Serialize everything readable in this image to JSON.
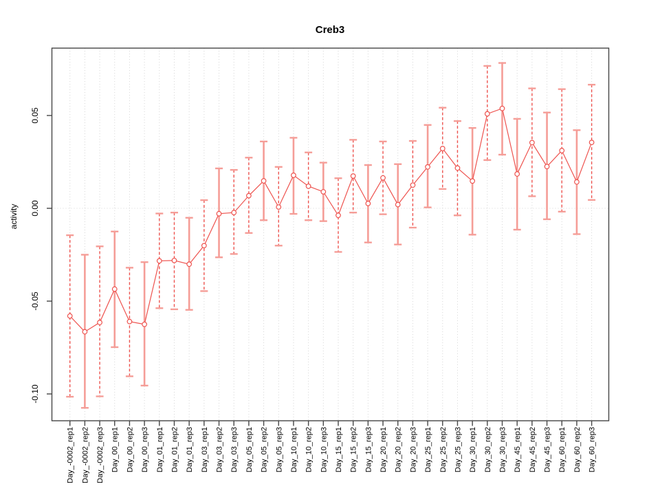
{
  "chart_data": {
    "type": "scatter",
    "title": "Creb3",
    "ylabel": "activity",
    "xlabel": "",
    "legend": "none",
    "categories": [
      "Day_-0002_rep1",
      "Day_-0002_rep2",
      "Day_-0002_rep3",
      "Day_00_rep1",
      "Day_00_rep2",
      "Day_00_rep3",
      "Day_01_rep1",
      "Day_01_rep2",
      "Day_01_rep3",
      "Day_03_rep1",
      "Day_03_rep2",
      "Day_03_rep3",
      "Day_05_rep1",
      "Day_05_rep2",
      "Day_05_rep3",
      "Day_10_rep1",
      "Day_10_rep2",
      "Day_10_rep3",
      "Day_15_rep1",
      "Day_15_rep2",
      "Day_15_rep3",
      "Day_20_rep1",
      "Day_20_rep2",
      "Day_20_rep3",
      "Day_25_rep1",
      "Day_25_rep2",
      "Day_25_rep3",
      "Day_30_rep1",
      "Day_30_rep2",
      "Day_30_rep3",
      "Day_45_rep1",
      "Day_45_rep2",
      "Day_45_rep3",
      "Day_60_rep1",
      "Day_60_rep2",
      "Day_60_rep3"
    ],
    "series": [
      {
        "name": "activity",
        "values": [
          -0.058,
          -0.0665,
          -0.0615,
          -0.0435,
          -0.061,
          -0.0625,
          -0.0283,
          -0.0281,
          -0.0301,
          -0.0201,
          -0.0029,
          -0.0023,
          0.0068,
          0.0148,
          0.0007,
          0.0178,
          0.0119,
          0.0089,
          -0.0038,
          0.0174,
          0.0026,
          0.0164,
          0.002,
          0.0125,
          0.0223,
          0.0322,
          0.0217,
          0.0147,
          0.0509,
          0.0538,
          0.0185,
          0.0354,
          0.0225,
          0.0311,
          0.0142,
          0.0355
        ],
        "error_low": [
          -0.1015,
          -0.1075,
          -0.1013,
          -0.0748,
          -0.0905,
          -0.0955,
          -0.0538,
          -0.0544,
          -0.0547,
          -0.0446,
          -0.0264,
          -0.0246,
          -0.0133,
          -0.0064,
          -0.0201,
          -0.003,
          -0.0064,
          -0.0069,
          -0.0235,
          -0.0023,
          -0.0184,
          -0.0032,
          -0.0195,
          -0.0104,
          0.0005,
          0.0104,
          -0.0038,
          -0.0142,
          0.026,
          0.0289,
          -0.0115,
          0.0065,
          -0.0059,
          -0.0018,
          -0.0139,
          0.0045
        ],
        "error_high": [
          -0.0145,
          -0.025,
          -0.0205,
          -0.0125,
          -0.032,
          -0.029,
          -0.0028,
          -0.0023,
          -0.0051,
          0.0044,
          0.0215,
          0.0207,
          0.0273,
          0.036,
          0.0223,
          0.038,
          0.0301,
          0.0246,
          0.0162,
          0.0369,
          0.0233,
          0.036,
          0.0238,
          0.0363,
          0.0449,
          0.0542,
          0.047,
          0.0433,
          0.0767,
          0.0783,
          0.0482,
          0.0646,
          0.0516,
          0.0642,
          0.0421,
          0.0666
        ],
        "bar_styles": [
          "dashed",
          "solid",
          "dashed",
          "solid",
          "dashed",
          "solid",
          "dashed",
          "dashed",
          "solid",
          "dashed",
          "solid",
          "dashed",
          "dashed",
          "solid",
          "dashed",
          "solid",
          "dashed",
          "solid",
          "dashed",
          "dashed",
          "solid",
          "dashed",
          "solid",
          "dashed",
          "solid",
          "dashed",
          "dashed",
          "solid",
          "dashed",
          "solid",
          "solid",
          "dashed",
          "solid",
          "dashed",
          "solid",
          "dashed"
        ]
      }
    ],
    "yticks": {
      "values": [
        0.05,
        0.0,
        -0.05,
        -0.1
      ],
      "labels": [
        "0.05",
        "0.00",
        "-0.05",
        "-0.10"
      ]
    },
    "ylim": [
      -0.1144,
      0.0863
    ],
    "grid": {
      "vertical_dotted_per_category": true,
      "horizontal_dotted_at_zero": true
    },
    "colors": {
      "point_line": "#ee534f",
      "error_bar_solid": "#f59d97",
      "error_cap": "#f59d97",
      "grid": "#d6d6d6",
      "axis_box": "#454545",
      "text": "#000000",
      "background": "#ffffff"
    }
  }
}
